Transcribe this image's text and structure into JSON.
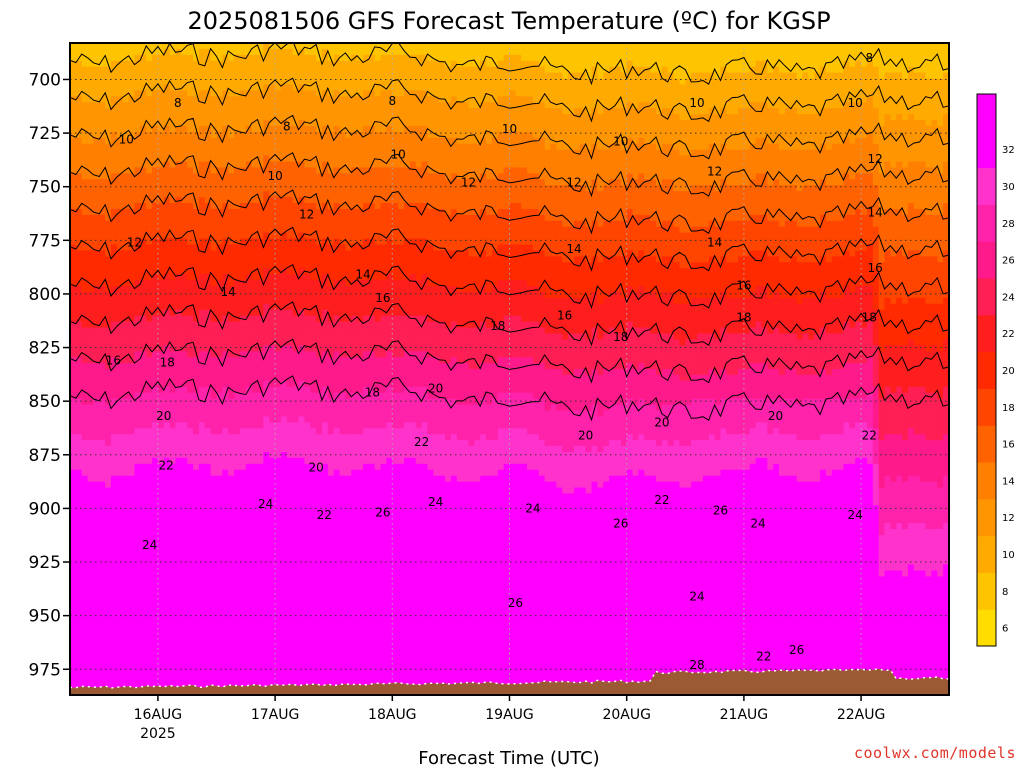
{
  "chart_data": {
    "type": "heatmap",
    "title": "2025081506 GFS Forecast Temperature (ºC) for KGSP",
    "xlabel": "Forecast Time (UTC)",
    "ylabel": "",
    "credit": "coolwx.com/models",
    "x_ticks": [
      "16AUG",
      "17AUG",
      "18AUG",
      "19AUG",
      "20AUG",
      "21AUG",
      "22AUG"
    ],
    "x_tick_sub": "2025",
    "xlim_days": [
      15.25,
      22.75
    ],
    "y_ticks": [
      700,
      725,
      750,
      775,
      800,
      825,
      850,
      875,
      900,
      925,
      950,
      975
    ],
    "ylim_hpa": [
      683,
      987
    ],
    "y_reversed": true,
    "grid": true,
    "colorbar": {
      "ticks": [
        6,
        8,
        10,
        12,
        14,
        16,
        18,
        20,
        22,
        24,
        26,
        28,
        30,
        32
      ],
      "colors": [
        "#ffdd00",
        "#ffc400",
        "#ffaa00",
        "#ff9500",
        "#ff7f00",
        "#ff6200",
        "#ff4500",
        "#ff2a00",
        "#ff1e1e",
        "#ff1f55",
        "#ff1a8c",
        "#ff22aa",
        "#ff33cc",
        "#ff00ff",
        "#ff00ff"
      ],
      "placement": "right"
    },
    "ground_color": "#9b5a34",
    "contour_interval": 2,
    "contour_labels": [
      {
        "day": 15.73,
        "p": 728,
        "v": 10
      },
      {
        "day": 16.17,
        "p": 711,
        "v": 8
      },
      {
        "day": 17.0,
        "p": 745,
        "v": 10
      },
      {
        "day": 17.1,
        "p": 722,
        "v": 8
      },
      {
        "day": 18.0,
        "p": 710,
        "v": 8
      },
      {
        "day": 18.05,
        "p": 735,
        "v": 10
      },
      {
        "day": 19.0,
        "p": 723,
        "v": 10
      },
      {
        "day": 19.95,
        "p": 729,
        "v": 10
      },
      {
        "day": 20.6,
        "p": 711,
        "v": 10
      },
      {
        "day": 21.95,
        "p": 711,
        "v": 10
      },
      {
        "day": 22.07,
        "p": 690,
        "v": 8
      },
      {
        "day": 15.8,
        "p": 776,
        "v": 12
      },
      {
        "day": 17.27,
        "p": 763,
        "v": 12
      },
      {
        "day": 18.65,
        "p": 748,
        "v": 12
      },
      {
        "day": 19.55,
        "p": 748,
        "v": 12
      },
      {
        "day": 20.75,
        "p": 743,
        "v": 12
      },
      {
        "day": 22.12,
        "p": 737,
        "v": 12
      },
      {
        "day": 16.6,
        "p": 799,
        "v": 14
      },
      {
        "day": 17.75,
        "p": 791,
        "v": 14
      },
      {
        "day": 19.55,
        "p": 779,
        "v": 14
      },
      {
        "day": 20.75,
        "p": 776,
        "v": 14
      },
      {
        "day": 22.12,
        "p": 762,
        "v": 14
      },
      {
        "day": 15.62,
        "p": 831,
        "v": 16
      },
      {
        "day": 17.92,
        "p": 802,
        "v": 16
      },
      {
        "day": 19.47,
        "p": 810,
        "v": 16
      },
      {
        "day": 21.0,
        "p": 796,
        "v": 16
      },
      {
        "day": 22.12,
        "p": 788,
        "v": 16
      },
      {
        "day": 16.08,
        "p": 832,
        "v": 18
      },
      {
        "day": 17.83,
        "p": 846,
        "v": 18
      },
      {
        "day": 18.9,
        "p": 815,
        "v": 18
      },
      {
        "day": 19.95,
        "p": 820,
        "v": 18
      },
      {
        "day": 21.0,
        "p": 811,
        "v": 18
      },
      {
        "day": 22.07,
        "p": 811,
        "v": 18
      },
      {
        "day": 16.05,
        "p": 857,
        "v": 20
      },
      {
        "day": 17.35,
        "p": 881,
        "v": 20
      },
      {
        "day": 18.37,
        "p": 844,
        "v": 20
      },
      {
        "day": 19.65,
        "p": 866,
        "v": 20
      },
      {
        "day": 20.3,
        "p": 860,
        "v": 20
      },
      {
        "day": 21.27,
        "p": 857,
        "v": 20
      },
      {
        "day": 16.07,
        "p": 880,
        "v": 22
      },
      {
        "day": 17.42,
        "p": 903,
        "v": 22
      },
      {
        "day": 18.25,
        "p": 869,
        "v": 22
      },
      {
        "day": 20.3,
        "p": 896,
        "v": 22
      },
      {
        "day": 22.07,
        "p": 866,
        "v": 22
      },
      {
        "day": 21.17,
        "p": 969,
        "v": 22
      },
      {
        "day": 15.93,
        "p": 917,
        "v": 24
      },
      {
        "day": 16.92,
        "p": 898,
        "v": 24
      },
      {
        "day": 18.37,
        "p": 897,
        "v": 24
      },
      {
        "day": 19.2,
        "p": 900,
        "v": 24
      },
      {
        "day": 20.6,
        "p": 941,
        "v": 24
      },
      {
        "day": 21.12,
        "p": 907,
        "v": 24
      },
      {
        "day": 21.95,
        "p": 903,
        "v": 24
      },
      {
        "day": 17.92,
        "p": 902,
        "v": 26
      },
      {
        "day": 19.05,
        "p": 944,
        "v": 26
      },
      {
        "day": 19.95,
        "p": 907,
        "v": 26
      },
      {
        "day": 20.8,
        "p": 901,
        "v": 26
      },
      {
        "day": 21.45,
        "p": 966,
        "v": 26
      },
      {
        "day": 20.6,
        "p": 973,
        "v": 28
      }
    ]
  }
}
